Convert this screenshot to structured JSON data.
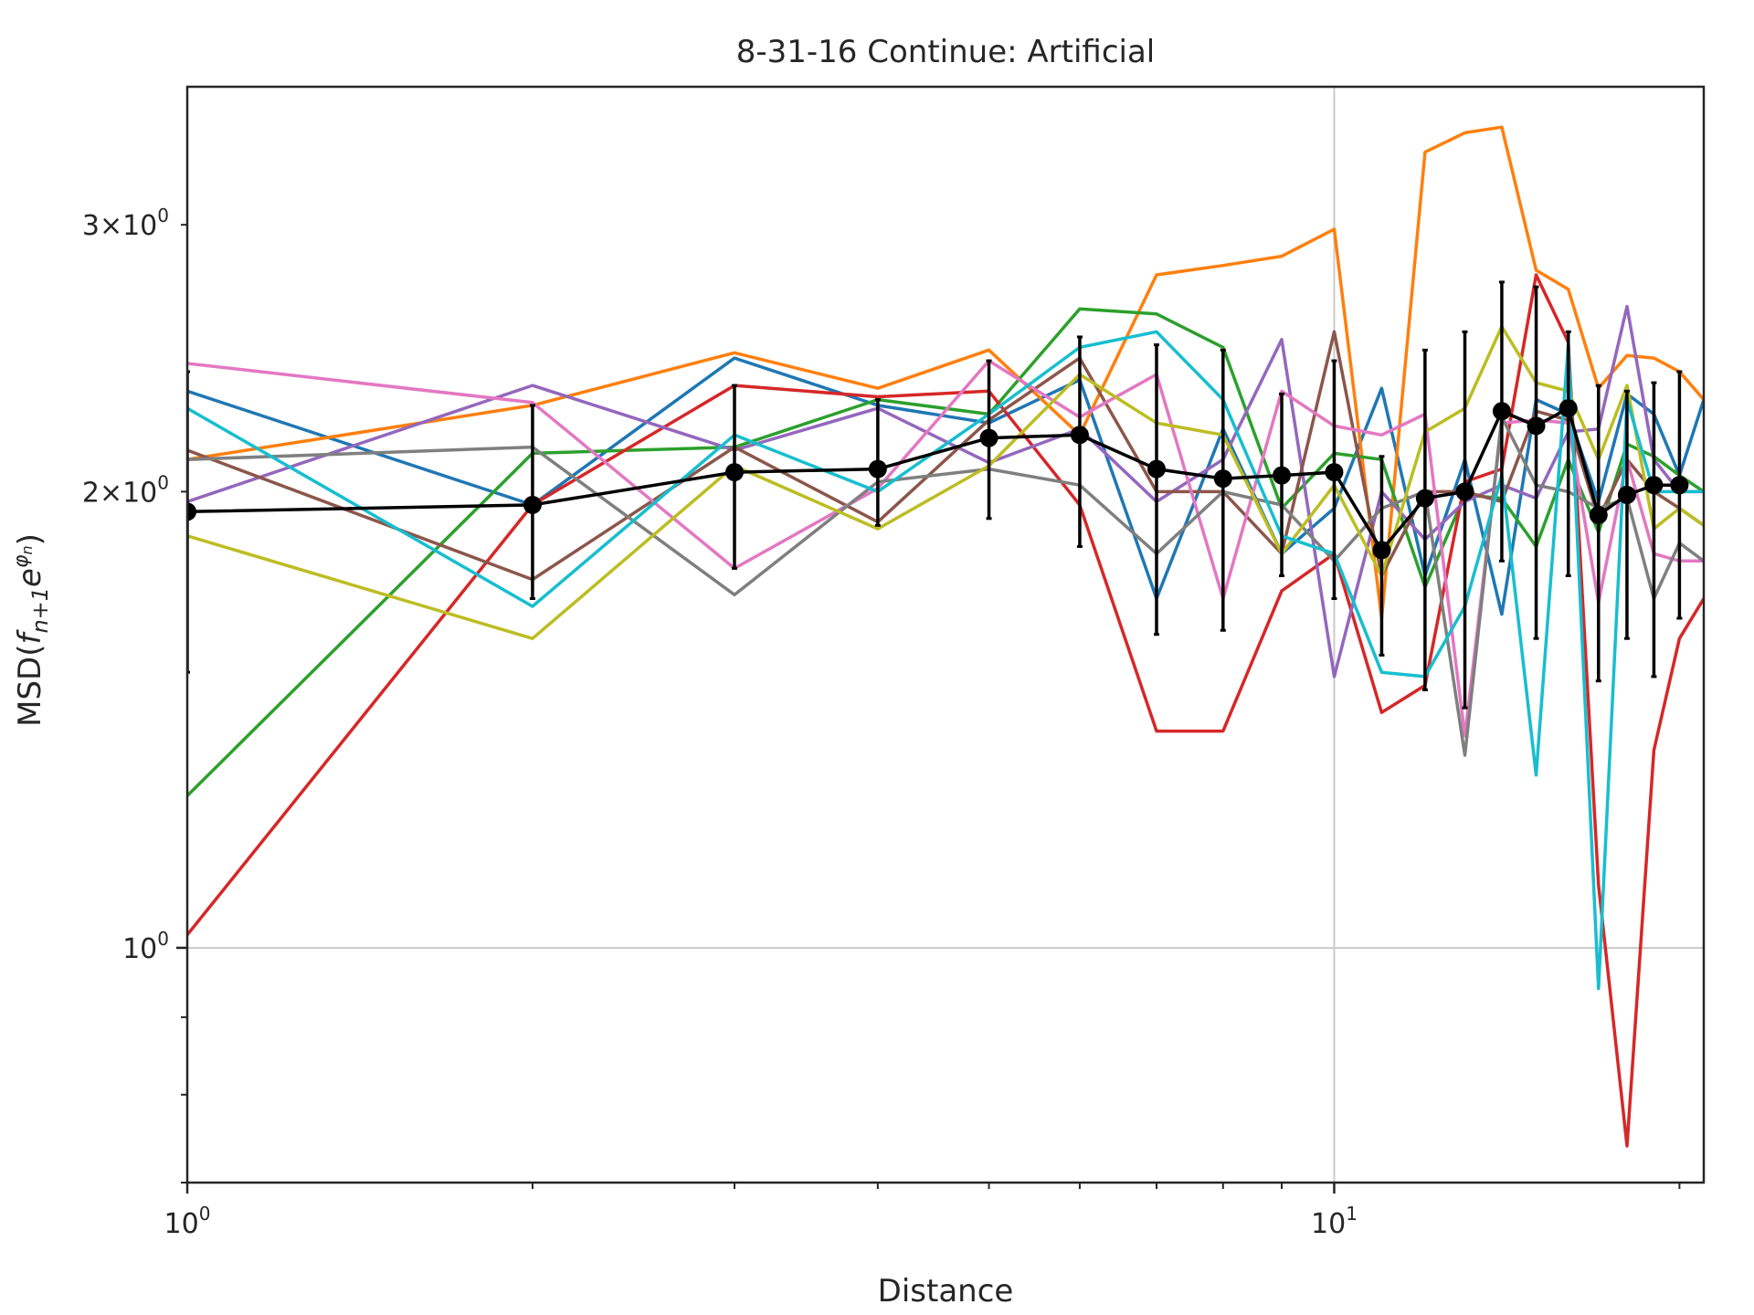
{
  "chart_data": {
    "type": "line",
    "title": "8-31-16 Continue: Artificial",
    "xlabel": "Distance",
    "ylabel": "MSD(f_{n+1} e^{φ_n})",
    "ylabel_parts": {
      "prefix": "MSD(",
      "f": "f",
      "sub": "n+1",
      "e": "e",
      "phi": "φ",
      "phisub": "n",
      "suffix": ")"
    },
    "xscale": "log",
    "yscale": "log",
    "xlim": [
      1,
      21
    ],
    "ylim": [
      0.7,
      3.7
    ],
    "grid": "major",
    "legend": "none",
    "x_ticks": [
      {
        "value": 1,
        "base": "10",
        "exp": "0"
      },
      {
        "value": 10,
        "base": "10",
        "exp": "1"
      }
    ],
    "y_ticks": [
      {
        "value": 1,
        "base": "10",
        "exp": "0",
        "mant": ""
      },
      {
        "value": 2,
        "base": "10",
        "exp": "0",
        "mant": "2×"
      },
      {
        "value": 3,
        "base": "10",
        "exp": "0",
        "mant": "3×"
      }
    ],
    "x": [
      1,
      2,
      3,
      4,
      5,
      6,
      7,
      8,
      9,
      10,
      11,
      12,
      13,
      14,
      15,
      16,
      17,
      18,
      19,
      20,
      21
    ],
    "series": [
      {
        "color": "#1f77b4",
        "values": [
          2.33,
          1.96,
          2.45,
          2.28,
          2.22,
          2.37,
          1.7,
          2.2,
          1.82,
          1.95,
          2.34,
          1.76,
          2.1,
          1.66,
          2.3,
          2.25,
          1.97,
          2.32,
          2.25,
          2.05,
          2.3
        ]
      },
      {
        "color": "#ff7f0e",
        "values": [
          2.1,
          2.28,
          2.47,
          2.34,
          2.48,
          2.18,
          2.78,
          2.82,
          2.86,
          2.98,
          1.65,
          3.35,
          3.45,
          3.48,
          2.8,
          2.72,
          2.34,
          2.46,
          2.45,
          2.4,
          2.3
        ]
      },
      {
        "color": "#2ca02c",
        "values": [
          1.26,
          2.12,
          2.14,
          2.3,
          2.25,
          2.64,
          2.62,
          2.49,
          1.95,
          2.12,
          2.1,
          1.73,
          1.99,
          1.98,
          1.84,
          2.1,
          1.88,
          2.15,
          2.11,
          2.05,
          2.0
        ]
      },
      {
        "color": "#d62728",
        "values": [
          1.02,
          1.96,
          2.35,
          2.31,
          2.33,
          1.96,
          1.39,
          1.39,
          1.72,
          1.82,
          1.43,
          1.49,
          2.03,
          2.07,
          2.78,
          2.51,
          1.1,
          0.74,
          1.35,
          1.6,
          1.7
        ]
      },
      {
        "color": "#9467bd",
        "values": [
          1.97,
          2.35,
          2.13,
          2.27,
          2.09,
          2.2,
          1.97,
          2.1,
          2.52,
          1.51,
          2.0,
          1.86,
          1.97,
          2.02,
          1.98,
          2.19,
          2.2,
          2.65,
          2.1,
          2.0,
          2.0
        ]
      },
      {
        "color": "#8c564b",
        "values": [
          2.13,
          1.75,
          2.14,
          1.91,
          2.23,
          2.45,
          2.0,
          2.0,
          1.82,
          2.55,
          1.76,
          2.0,
          2.0,
          1.97,
          2.26,
          2.23,
          1.92,
          2.1,
          2.0,
          1.95,
          1.9
        ]
      },
      {
        "color": "#e377c2",
        "values": [
          2.43,
          2.29,
          1.78,
          2.01,
          2.44,
          2.24,
          2.39,
          1.7,
          2.33,
          2.21,
          2.18,
          2.25,
          1.38,
          2.22,
          2.23,
          2.22,
          1.69,
          2.1,
          1.82,
          1.8,
          1.8
        ]
      },
      {
        "color": "#7f7f7f",
        "values": [
          2.1,
          2.14,
          1.71,
          2.03,
          2.07,
          2.02,
          1.82,
          2.0,
          1.96,
          1.8,
          1.95,
          2.0,
          1.34,
          2.24,
          2.02,
          2.0,
          1.95,
          1.98,
          1.7,
          1.85,
          1.8
        ]
      },
      {
        "color": "#bcbd22",
        "values": [
          1.87,
          1.6,
          2.08,
          1.89,
          2.08,
          2.39,
          2.22,
          2.18,
          1.82,
          2.02,
          1.76,
          2.19,
          2.27,
          2.57,
          2.36,
          2.33,
          2.1,
          2.35,
          1.89,
          1.95,
          1.9
        ]
      },
      {
        "color": "#17becf",
        "values": [
          2.27,
          1.68,
          2.18,
          2.0,
          2.25,
          2.49,
          2.55,
          2.3,
          1.87,
          1.82,
          1.52,
          1.51,
          1.68,
          2.05,
          1.3,
          2.5,
          0.94,
          2.3,
          2.0,
          2.0,
          2.0
        ]
      }
    ],
    "mean_series": {
      "color": "#000000",
      "x": [
        1,
        2,
        3,
        4,
        5,
        6,
        7,
        8,
        9,
        10,
        11,
        12,
        13,
        14,
        15,
        16,
        17,
        18,
        19,
        20
      ],
      "values": [
        1.94,
        1.96,
        2.06,
        2.07,
        2.17,
        2.18,
        2.07,
        2.04,
        2.05,
        2.06,
        1.83,
        1.98,
        2.0,
        2.26,
        2.21,
        2.27,
        1.93,
        1.99,
        2.02,
        2.02
      ],
      "err_low": [
        1.52,
        1.7,
        1.78,
        1.9,
        1.92,
        1.84,
        1.61,
        1.62,
        1.76,
        1.7,
        1.56,
        1.48,
        1.44,
        1.8,
        1.6,
        1.76,
        1.5,
        1.6,
        1.51,
        1.65
      ],
      "err_high": [
        2.4,
        2.28,
        2.35,
        2.3,
        2.44,
        2.53,
        2.5,
        2.48,
        2.32,
        2.44,
        2.11,
        2.48,
        2.55,
        2.75,
        2.73,
        2.55,
        2.35,
        2.33,
        2.36,
        2.4
      ]
    }
  }
}
